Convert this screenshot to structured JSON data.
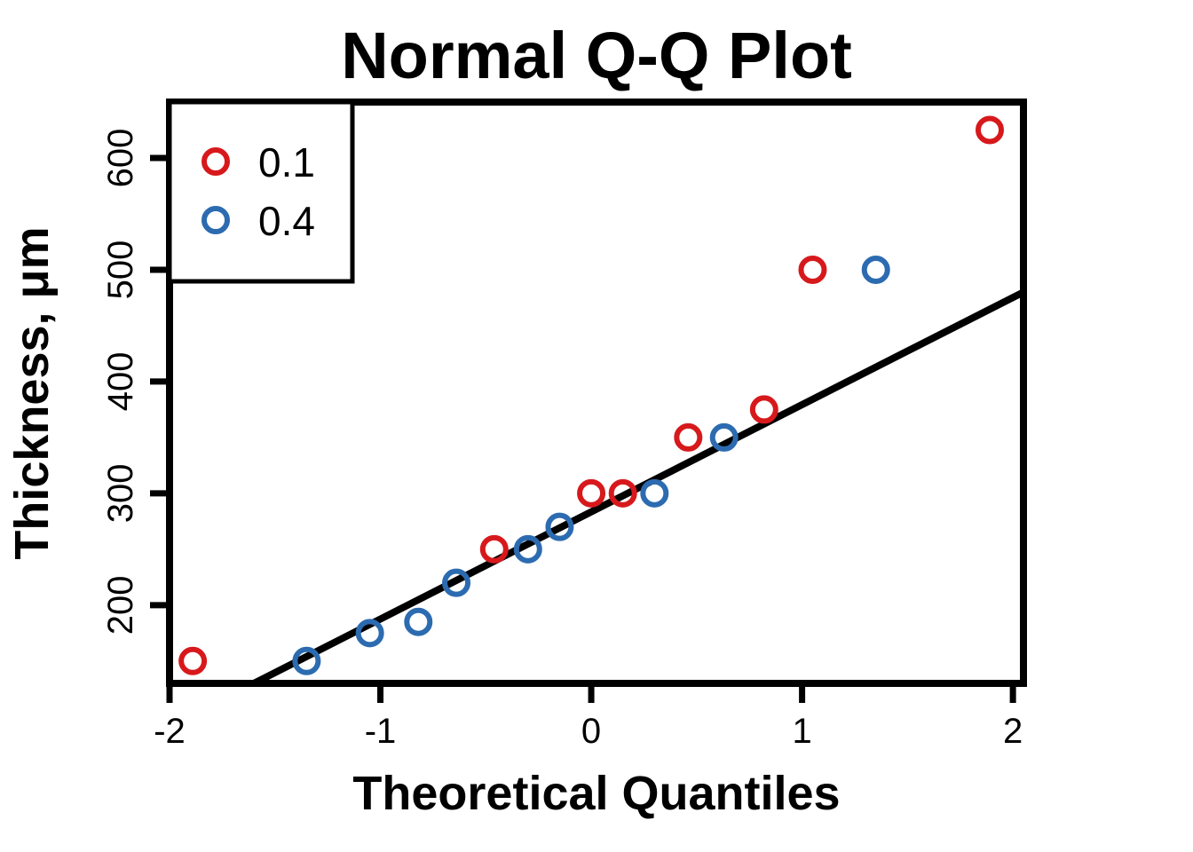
{
  "chart_data": {
    "type": "scatter",
    "title": "Normal Q-Q Plot",
    "xlabel": "Theoretical Quantiles",
    "ylabel": "Thickness, μm",
    "xlim": [
      -2.0,
      2.05
    ],
    "ylim": [
      130,
      650
    ],
    "xticks": [
      -2,
      -1,
      0,
      1,
      2
    ],
    "xtick_labels": [
      "-2",
      "-1",
      "0",
      "1",
      "2"
    ],
    "yticks": [
      200,
      300,
      400,
      500,
      600
    ],
    "ytick_labels": [
      "200",
      "300",
      "400",
      "500",
      "600"
    ],
    "grid": false,
    "legend_position": "top-left",
    "series": [
      {
        "name": "0.1",
        "color": "#d7191c",
        "marker": "open-circle",
        "x": [
          -1.89,
          -0.46,
          0.0,
          0.15,
          0.46,
          0.82,
          1.05,
          1.89
        ],
        "y": [
          150,
          250,
          300,
          300,
          350,
          375,
          500,
          625
        ]
      },
      {
        "name": "0.4",
        "color": "#2c6bb0",
        "marker": "open-circle",
        "x": [
          -1.35,
          -1.05,
          -0.82,
          -0.64,
          -0.3,
          -0.15,
          0.3,
          0.63,
          1.35
        ],
        "y": [
          150,
          175,
          185,
          220,
          250,
          270,
          300,
          350,
          500
        ]
      }
    ],
    "reference_line": {
      "color": "#000000",
      "points": [
        [
          -1.6,
          130
        ],
        [
          2.05,
          480
        ]
      ]
    }
  }
}
